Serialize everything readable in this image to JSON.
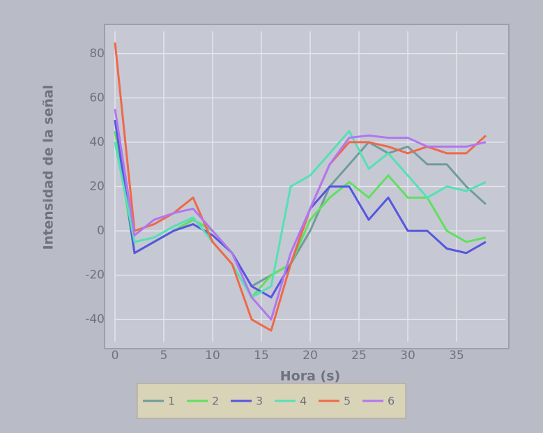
{
  "chart_data": {
    "type": "line",
    "xlabel": "Hora (s)",
    "ylabel": "Intensidad de la señal",
    "x": [
      0,
      2,
      4,
      6,
      8,
      10,
      12,
      14,
      16,
      18,
      20,
      22,
      24,
      26,
      28,
      30,
      32,
      34,
      36,
      38
    ],
    "series": [
      {
        "name": "1",
        "color": "#6f9c9c",
        "values": [
          50,
          -10,
          -5,
          0,
          5,
          0,
          -10,
          -25,
          -20,
          -15,
          0,
          20,
          30,
          40,
          35,
          38,
          30,
          30,
          20,
          12
        ]
      },
      {
        "name": "2",
        "color": "#5fe05f",
        "values": [
          45,
          -10,
          -5,
          0,
          5,
          0,
          -10,
          -30,
          -20,
          -15,
          5,
          15,
          22,
          15,
          25,
          15,
          15,
          0,
          -5,
          -3
        ]
      },
      {
        "name": "3",
        "color": "#5656e0",
        "values": [
          50,
          -10,
          -5,
          0,
          3,
          -2,
          -10,
          -25,
          -30,
          -15,
          10,
          20,
          20,
          5,
          15,
          0,
          0,
          -8,
          -10,
          -5
        ]
      },
      {
        "name": "4",
        "color": "#55e0b5",
        "values": [
          40,
          -5,
          -3,
          2,
          6,
          -5,
          -15,
          -30,
          -25,
          20,
          25,
          35,
          45,
          28,
          35,
          25,
          15,
          20,
          18,
          22
        ]
      },
      {
        "name": "5",
        "color": "#f06848",
        "values": [
          85,
          0,
          3,
          8,
          15,
          -5,
          -15,
          -40,
          -45,
          -15,
          10,
          30,
          40,
          40,
          38,
          35,
          38,
          35,
          35,
          43
        ]
      },
      {
        "name": "6",
        "color": "#b276f0",
        "values": [
          55,
          -2,
          5,
          8,
          10,
          0,
          -10,
          -30,
          -40,
          -10,
          10,
          30,
          42,
          43,
          42,
          42,
          38,
          38,
          38,
          40
        ]
      }
    ],
    "xlim": [
      0,
      40
    ],
    "ylim": [
      -50,
      90
    ],
    "xticks": [
      0,
      5,
      10,
      15,
      20,
      25,
      30,
      35
    ],
    "yticks": [
      -40,
      -20,
      0,
      20,
      40,
      60,
      80
    ],
    "grid": true,
    "legend": "bottom"
  }
}
